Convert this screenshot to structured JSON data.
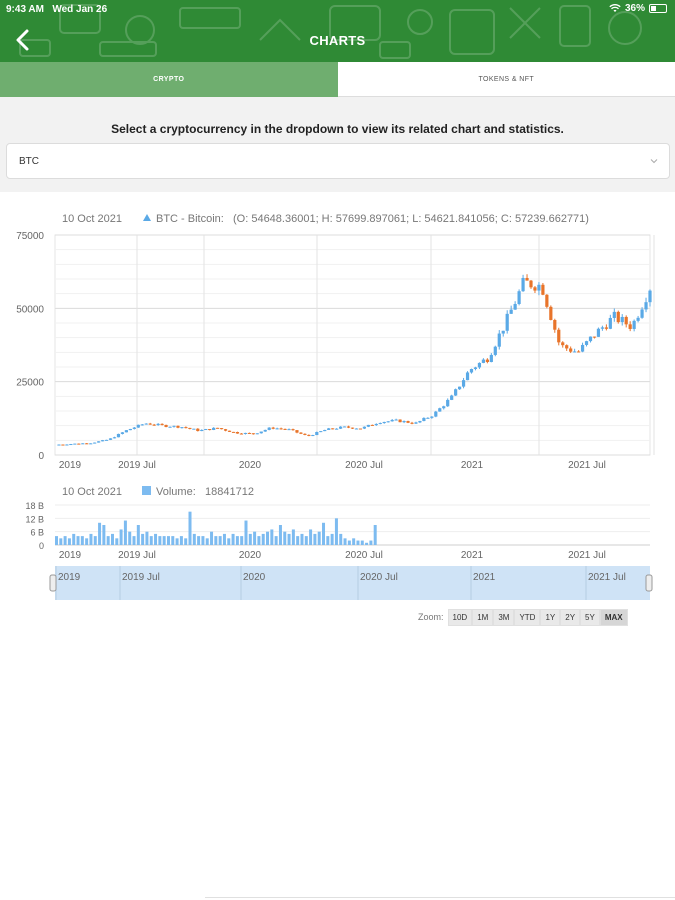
{
  "status_bar": {
    "time": "9:43 AM",
    "date": "Wed Jan 26",
    "battery": "36%",
    "battery_fill": 0.36
  },
  "header": {
    "title": "CHARTS"
  },
  "tabs": [
    {
      "label": "CRYPTO",
      "active": true
    },
    {
      "label": "TOKENS & NFT",
      "active": false
    }
  ],
  "instructions": "Select a cryptocurrency in the dropdown to view its related chart and statistics.",
  "dropdown": {
    "value": "BTC"
  },
  "colors": {
    "up": "#5aa9e6",
    "down": "#e8742a",
    "header": "#2f8a35",
    "tab_active": "#6fae6f",
    "volume": "#7dbbf0",
    "navigator": "#cfe3f6"
  },
  "chart_data": [
    {
      "type": "candlestick",
      "tooltip_date": "10 Oct 2021",
      "series_label": "BTC - Bitcoin:",
      "tooltip_values": "(O: 54648.36001; H: 57699.897061; L: 54621.841056; C: 57239.662771)",
      "y_ticks": [
        "75000",
        "50000",
        "25000",
        "0"
      ],
      "ylim": [
        0,
        75000
      ],
      "x_ticks": [
        "2019",
        "2019 Jul",
        "2020",
        "2020 Jul",
        "2021",
        "2021 Jul"
      ],
      "x": [
        "2019-01",
        "2019-02",
        "2019-03",
        "2019-04",
        "2019-05",
        "2019-06",
        "2019-07",
        "2019-08",
        "2019-09",
        "2019-10",
        "2019-11",
        "2019-12",
        "2020-01",
        "2020-02",
        "2020-03",
        "2020-04",
        "2020-05",
        "2020-06",
        "2020-07",
        "2020-08",
        "2020-09",
        "2020-10",
        "2020-11",
        "2020-12",
        "2021-01",
        "2021-02",
        "2021-03",
        "2021-04",
        "2021-05",
        "2021-06",
        "2021-07",
        "2021-08",
        "2021-09",
        "2021-10"
      ],
      "close": [
        3500,
        3800,
        4100,
        5300,
        8500,
        10800,
        10000,
        9600,
        8300,
        9200,
        7600,
        7200,
        9300,
        8600,
        6400,
        8600,
        9500,
        9100,
        11300,
        11700,
        10800,
        13800,
        19700,
        29000,
        33100,
        45200,
        58800,
        57700,
        37300,
        35000,
        41500,
        47100,
        43800,
        57200
      ]
    },
    {
      "type": "bar",
      "tooltip_date": "10 Oct 2021",
      "series_label": "Volume:",
      "tooltip_value": "18841712",
      "y_ticks": [
        "18 B",
        "12 B",
        "6 B",
        "0"
      ],
      "ylim": [
        0,
        18
      ],
      "x_ticks": [
        "2019",
        "2019 Jul",
        "2020",
        "2020 Jul",
        "2021",
        "2021 Jul"
      ],
      "values": [
        4,
        3,
        4,
        3,
        5,
        4,
        4,
        3,
        5,
        4,
        10,
        9,
        4,
        5,
        3,
        7,
        11,
        6,
        4,
        9,
        5,
        6,
        4,
        5,
        4,
        4,
        4,
        4,
        3,
        4,
        3,
        15,
        5,
        4,
        4,
        3,
        6,
        4,
        4,
        5,
        3,
        5,
        4,
        4,
        11,
        5,
        6,
        4,
        5,
        6,
        7,
        4,
        9,
        6,
        5,
        7,
        4,
        5,
        4,
        7,
        5,
        6,
        10,
        4,
        5,
        12,
        5,
        3,
        2,
        3,
        2,
        2,
        1,
        2,
        9
      ]
    }
  ],
  "navigator": {
    "labels": [
      "2019",
      "2019 Jul",
      "2020",
      "2020 Jul",
      "2021",
      "2021 Jul"
    ]
  },
  "zoom": {
    "label": "Zoom:",
    "options": [
      "10D",
      "1M",
      "3M",
      "YTD",
      "1Y",
      "2Y",
      "5Y",
      "MAX"
    ],
    "active": "MAX"
  }
}
